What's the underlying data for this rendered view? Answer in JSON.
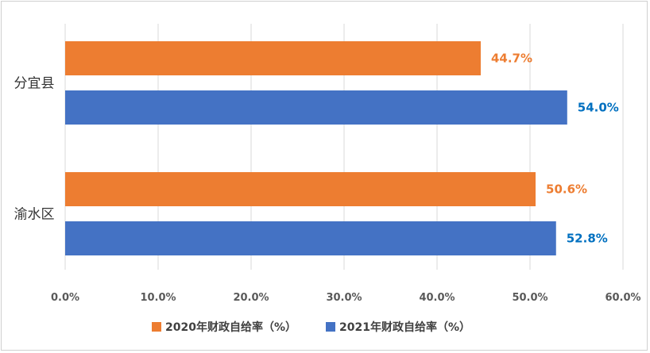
{
  "chart_data": {
    "type": "bar",
    "orientation": "horizontal",
    "categories": [
      "分宜县",
      "渝水区"
    ],
    "series": [
      {
        "name": "2020年财政自给率（%）",
        "values": [
          44.7,
          50.6
        ],
        "labels": [
          "44.7%",
          "50.6%"
        ],
        "color": "#ED7D31",
        "label_color": "#ED7D31"
      },
      {
        "name": "2021年财政自给率（%）",
        "values": [
          54.0,
          52.8
        ],
        "labels": [
          "54.0%",
          "52.8%"
        ],
        "color": "#4472C4",
        "label_color": "#0070C0"
      }
    ],
    "xlim": [
      0,
      60
    ],
    "xticks": [
      0,
      10,
      20,
      30,
      40,
      50,
      60
    ],
    "xtick_labels": [
      "0.0%",
      "10.0%",
      "20.0%",
      "30.0%",
      "40.0%",
      "50.0%",
      "60.0%"
    ],
    "grid": true,
    "legend_position": "bottom",
    "title": "",
    "xlabel": "",
    "ylabel": ""
  }
}
